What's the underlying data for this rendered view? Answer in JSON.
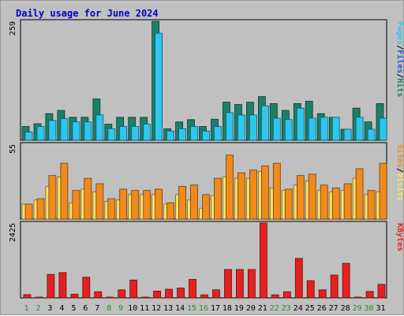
{
  "title": "Daily usage for June 2024",
  "colors": {
    "background": "#c0c0c0",
    "title": "#0000cc",
    "hits": "#1a8068",
    "files": "#2fc6f0",
    "visits": "#f08a1a",
    "sites": "#ffe060",
    "kbytes": "#e62020",
    "pages": "#2fc6f0",
    "weekend": "#2a8c2a",
    "weekday": "#000000",
    "separator": "#000000"
  },
  "legends": {
    "top": [
      {
        "text": "Pages",
        "color": "#2fc6f0"
      },
      {
        "text": "/",
        "color": "#000000"
      },
      {
        "text": "Files",
        "color": "#1a5fd6"
      },
      {
        "text": "/",
        "color": "#000000"
      },
      {
        "text": "Hits",
        "color": "#1a8068"
      }
    ],
    "middle": [
      {
        "text": "Sites",
        "color": "#f08a1a"
      },
      {
        "text": "/",
        "color": "#000000"
      },
      {
        "text": "Visits",
        "color": "#ffe060"
      }
    ],
    "bottom": [
      {
        "text": "KBytes",
        "color": "#e62020"
      }
    ]
  },
  "chart_data": {
    "type": "bar",
    "title": "Daily usage for June 2024",
    "categories": [
      "1",
      "2",
      "3",
      "4",
      "5",
      "6",
      "7",
      "8",
      "9",
      "10",
      "11",
      "12",
      "13",
      "14",
      "15",
      "16",
      "17",
      "18",
      "19",
      "20",
      "21",
      "22",
      "23",
      "24",
      "25",
      "26",
      "27",
      "28",
      "29",
      "30",
      "31"
    ],
    "weekend_days": [
      "1",
      "2",
      "8",
      "9",
      "15",
      "16",
      "22",
      "23",
      "29",
      "30"
    ],
    "panels": [
      {
        "ymax": 259,
        "ymax_label": "259",
        "series": [
          {
            "name": "Hits",
            "color": "#1a8068",
            "values": [
              30,
              36,
              58,
              65,
              50,
              50,
              90,
              35,
              50,
              50,
              50,
              259,
              25,
              40,
              45,
              30,
              46,
              83,
              78,
              83,
              95,
              80,
              65,
              80,
              85,
              58,
              50,
              24,
              70,
              40,
              80
            ]
          },
          {
            "name": "Files",
            "color": "#2fc6f0",
            "values": [
              18,
              30,
              43,
              47,
              40,
              40,
              55,
              25,
              30,
              30,
              35,
              233,
              20,
              25,
              30,
              20,
              30,
              60,
              55,
              55,
              75,
              48,
              45,
              70,
              48,
              50,
              50,
              24,
              50,
              24,
              48
            ]
          }
        ]
      },
      {
        "ymax": 55,
        "ymax_label": "55",
        "series": [
          {
            "name": "Visits",
            "color": "#ffe060",
            "values": [
              11,
              14,
              24,
              31,
              12,
              22,
              20,
              13,
              14,
              18,
              18,
              18,
              11,
              18,
              14,
              8,
              17,
              31,
              30,
              30,
              35,
              23,
              21,
              25,
              28,
              21,
              20,
              21,
              30,
              18,
              20
            ]
          },
          {
            "name": "Sites",
            "color": "#f08a1a",
            "values": [
              11,
              15,
              32,
              41,
              21,
              30,
              26,
              15,
              22,
              21,
              21,
              22,
              12,
              24,
              25,
              18,
              30,
              47,
              34,
              36,
              39,
              41,
              22,
              32,
              33,
              25,
              23,
              26,
              37,
              21,
              41
            ]
          }
        ]
      },
      {
        "ymax": 2425,
        "ymax_label": "2425",
        "series": [
          {
            "name": "KBytes",
            "color": "#e62020",
            "values": [
              105,
              20,
              760,
              820,
              120,
              670,
              200,
              20,
              260,
              580,
              20,
              220,
              280,
              320,
              600,
              100,
              260,
              920,
              920,
              920,
              2425,
              100,
              200,
              1280,
              560,
              260,
              740,
              1120,
              20,
              210,
              440
            ]
          }
        ]
      }
    ]
  }
}
